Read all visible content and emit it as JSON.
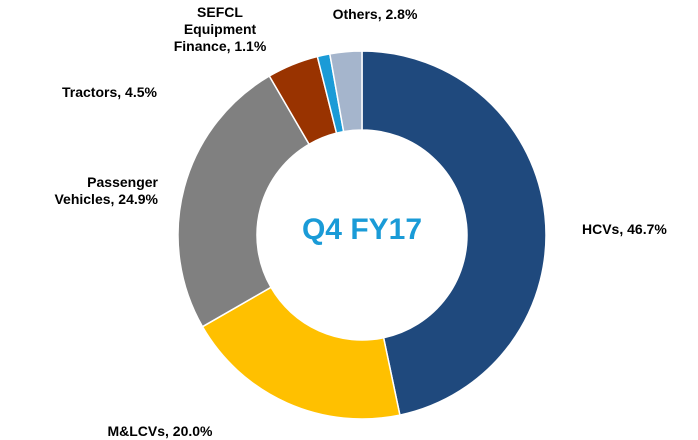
{
  "chart_data": {
    "type": "donut",
    "center_text": "Q4 FY17",
    "categories": [
      "HCVs, 46.7%",
      "M&LCVs, 20.0%",
      "Passenger\nVehicles, 24.9%",
      "Tractors, 4.5%",
      "SEFCL\nEquipment\nFinance, 1.1%",
      "Others, 2.8%"
    ],
    "values": [
      46.7,
      20.0,
      24.9,
      4.5,
      1.1,
      2.8
    ],
    "colors": [
      "#1f497d",
      "#ffc000",
      "#808080",
      "#993300",
      "#1a9bd7",
      "#a5b5cc"
    ]
  }
}
